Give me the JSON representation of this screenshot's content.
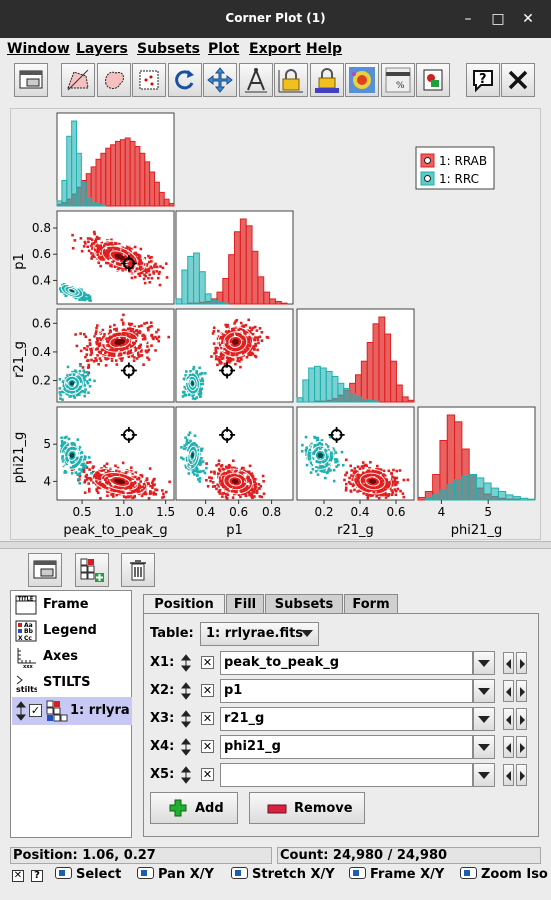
{
  "window": {
    "title": "Corner Plot (1)"
  },
  "menu": [
    "Window",
    "Layers",
    "Subsets",
    "Plot",
    "Export",
    "Help"
  ],
  "toolbar_icons": [
    "new-window-icon",
    "draw-subset-polygon-icon",
    "draw-subset-blob-icon",
    "subset-from-visible-icon",
    "replot-icon",
    "axis-lock-icon",
    "geometry-compass-icon",
    "axis-lock-yellow-icon",
    "shade-lock-icon",
    "density-icon",
    "progress-bar-icon",
    "export-image-icon",
    "help-icon",
    "close-icon"
  ],
  "legend": {
    "entries": [
      {
        "label": "1: RRAB",
        "color": "#e02020"
      },
      {
        "label": "1: RRC",
        "color": "#20b0b0"
      }
    ]
  },
  "chart_data": {
    "type": "corner",
    "variables": [
      "peak_to_peak_g",
      "p1",
      "r21_g",
      "phi21_g"
    ],
    "series": [
      {
        "name": "1: RRAB",
        "color": "#e02020"
      },
      {
        "name": "1: RRC",
        "color": "#20b0b0"
      }
    ],
    "axes": {
      "peak_to_peak_g": {
        "label": "peak_to_peak_g",
        "ticks": [
          "0.5",
          "1.0",
          "1.5"
        ],
        "tick_values": [
          0.5,
          1.0,
          1.5
        ],
        "range": [
          0.2,
          1.6
        ]
      },
      "p1": {
        "label": "p1",
        "ticks": [
          "0.4",
          "0.6",
          "0.8"
        ],
        "tick_values": [
          0.4,
          0.6,
          0.8
        ],
        "range": [
          0.22,
          0.93
        ]
      },
      "r21_g": {
        "label": "r21_g",
        "ticks": [
          "0.2",
          "0.4",
          "0.6"
        ],
        "tick_values": [
          0.2,
          0.4,
          0.6
        ],
        "range": [
          0.05,
          0.7
        ]
      },
      "phi21_g": {
        "label": "phi21_g",
        "ticks": [
          "4",
          "5"
        ],
        "tick_values": [
          4,
          5
        ],
        "range": [
          3.5,
          6.0
        ]
      }
    },
    "row_ticks": {
      "p1": [
        "0.4",
        "0.6",
        "0.8"
      ],
      "r21_g": [
        "0.2",
        "0.4",
        "0.6"
      ],
      "phi21_g": [
        "4",
        "5"
      ]
    },
    "marker": {
      "peak_to_peak_g": 1.06,
      "p1": 0.53,
      "r21_g": 0.27,
      "phi21_g": 5.25
    },
    "clusters": {
      "RRAB": {
        "peak_to_peak_g": 0.95,
        "p1": 0.58,
        "r21_g": 0.47,
        "phi21_g": 4.0
      },
      "RRC": {
        "peak_to_peak_g": 0.38,
        "p1": 0.32,
        "r21_g": 0.18,
        "phi21_g": 4.7
      }
    },
    "hist_rrab": {
      "peak_to_peak_g": [
        2,
        4,
        8,
        14,
        22,
        30,
        38,
        46,
        55,
        62,
        68,
        72,
        76,
        78,
        80,
        76,
        70,
        62,
        52,
        40,
        28,
        16,
        8,
        3
      ],
      "p1": [
        0,
        0,
        1,
        1,
        2,
        3,
        6,
        14,
        30,
        58,
        85,
        100,
        92,
        62,
        32,
        14,
        6,
        3,
        1,
        0
      ],
      "r21_g": [
        0,
        0,
        0,
        1,
        1,
        2,
        4,
        8,
        14,
        22,
        32,
        48,
        70,
        92,
        100,
        80,
        48,
        20,
        6,
        2
      ],
      "phi21_g": [
        3,
        10,
        30,
        70,
        100,
        92,
        60,
        30,
        14,
        7,
        4,
        2,
        1,
        1,
        0,
        0
      ]
    },
    "hist_rrc": {
      "peak_to_peak_g": [
        6,
        30,
        82,
        100,
        62,
        28,
        10,
        4,
        2,
        1,
        0,
        0,
        0,
        0,
        0,
        0,
        0,
        0,
        0,
        0,
        0,
        0,
        0,
        0
      ],
      "p1": [
        6,
        40,
        56,
        60,
        38,
        12,
        4,
        2,
        1,
        0,
        0,
        0,
        0,
        0,
        0,
        0,
        0,
        0,
        0,
        0
      ],
      "r21_g": [
        5,
        26,
        40,
        42,
        40,
        36,
        30,
        22,
        16,
        10,
        6,
        3,
        2,
        1,
        0,
        0,
        0,
        0,
        0,
        0
      ],
      "phi21_g": [
        0,
        2,
        6,
        12,
        18,
        24,
        28,
        30,
        26,
        20,
        14,
        10,
        6,
        4,
        2,
        1
      ]
    }
  },
  "control_icons": [
    "frame-control-icon",
    "add-corner-layer-icon",
    "delete-layer-icon"
  ],
  "layers": [
    {
      "label": "Frame",
      "icon": "frame-icon"
    },
    {
      "label": "Legend",
      "icon": "legend-icon"
    },
    {
      "label": "Axes",
      "icon": "axes-icon"
    },
    {
      "label": "STILTS",
      "icon": "stilts-icon"
    },
    {
      "label": "1: rrlyra",
      "icon": "corner-layer-icon",
      "checked": true
    }
  ],
  "tabs": [
    "Position",
    "Fill",
    "Subsets",
    "Form"
  ],
  "position": {
    "table_label": "Table:",
    "table_value": "1: rrlyrae.fits",
    "fields": [
      {
        "label": "X1:",
        "value": "peak_to_peak_g"
      },
      {
        "label": "X2:",
        "value": "p1"
      },
      {
        "label": "X3:",
        "value": "r21_g"
      },
      {
        "label": "X4:",
        "value": "phi21_g"
      },
      {
        "label": "X5:",
        "value": ""
      }
    ],
    "add_label": "Add",
    "remove_label": "Remove"
  },
  "status": {
    "position": "Position: 1.06, 0.27",
    "count": "Count: 24,980 / 24,980"
  },
  "hints": [
    "Select",
    "Pan X/Y",
    "Stretch X/Y",
    "Frame X/Y",
    "Zoom Iso"
  ],
  "colors": {
    "rrab": "#e02020",
    "rrc": "#20b0b0",
    "selection": "#c8c8f4"
  }
}
